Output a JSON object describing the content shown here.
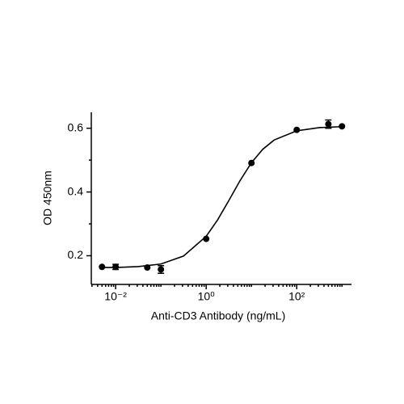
{
  "chart_data": {
    "type": "scatter",
    "x_label": "Anti-CD3 Antibody (ng/mL)",
    "y_label": "OD 450nm",
    "x_scale": "log",
    "color": "#000000",
    "x": [
      0.005,
      0.01,
      0.05,
      0.1,
      1,
      10,
      100,
      500,
      1000
    ],
    "values": [
      0.165,
      0.165,
      0.163,
      0.157,
      0.253,
      0.491,
      0.595,
      0.613,
      0.606
    ],
    "errors": [
      null,
      0.008,
      null,
      0.012,
      null,
      null,
      null,
      0.013,
      null
    ],
    "fit_x": [
      0.005,
      0.01,
      0.0316,
      0.1,
      0.316,
      1,
      1.78,
      3.16,
      5.62,
      10,
      17.8,
      31.6,
      100,
      316,
      1000
    ],
    "fit_values": [
      0.163,
      0.163,
      0.166,
      0.174,
      0.199,
      0.261,
      0.312,
      0.373,
      0.436,
      0.492,
      0.534,
      0.563,
      0.592,
      0.602,
      0.605
    ],
    "xlim": [
      0.0029,
      1620
    ],
    "ylim": [
      0.11,
      0.65
    ],
    "xticks": [
      {
        "value": 0.01,
        "label": "10⁻²"
      },
      {
        "value": 1,
        "label": "10⁰"
      },
      {
        "value": 100,
        "label": "10²"
      }
    ],
    "xminorticks": [
      0.003,
      0.004,
      0.005,
      0.006,
      0.007,
      0.008,
      0.009,
      0.02,
      0.03,
      0.04,
      0.05,
      0.06,
      0.07,
      0.08,
      0.09,
      0.1,
      0.2,
      0.3,
      0.4,
      0.5,
      0.6,
      0.7,
      0.8,
      0.9,
      2,
      3,
      4,
      5,
      6,
      7,
      8,
      9,
      10,
      20,
      30,
      40,
      50,
      60,
      70,
      80,
      90,
      200,
      300,
      400,
      500,
      600,
      700,
      800,
      900,
      1000
    ],
    "yticks": [
      0.2,
      0.4,
      0.6
    ],
    "yminorticks": [
      0.3,
      0.5
    ]
  }
}
